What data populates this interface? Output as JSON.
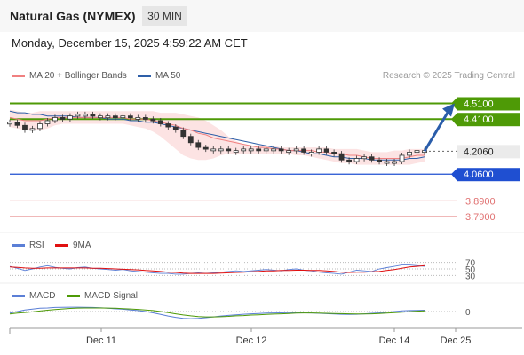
{
  "header": {
    "title": "Natural Gas (NYMEX)",
    "timeframe": "30 MIN"
  },
  "timestamp": "Monday, December 15, 2025 4:59:22 AM CET",
  "credit": "Research © 2025 Trading Central",
  "colors": {
    "ma20": "#f08080",
    "ma50": "#2e5fa8",
    "resistance": "#4e9a06",
    "support": "#1f4fd1",
    "lower": "#e07070",
    "price_tag": "#ebebeb",
    "arrow": "#2a5daa",
    "rsi": "#5b7fd6",
    "rsi_ma": "#e01010",
    "macd": "#5b7fd6",
    "macd_signal": "#4e9a06"
  },
  "chart_data": [
    {
      "type": "line",
      "panel": "price",
      "legend": [
        "MA 20 + Bollinger Bands",
        "MA 50"
      ],
      "ylim": [
        3.7,
        4.62
      ],
      "levels": [
        {
          "value": 4.51,
          "label": "4.5100",
          "kind": "resistance"
        },
        {
          "value": 4.41,
          "label": "4.4100",
          "kind": "resistance"
        },
        {
          "value": 4.206,
          "label": "4.2060",
          "kind": "last"
        },
        {
          "value": 4.06,
          "label": "4.0600",
          "kind": "support"
        },
        {
          "value": 3.89,
          "label": "3.8900",
          "kind": "lower"
        },
        {
          "value": 3.79,
          "label": "3.7900",
          "kind": "lower"
        }
      ],
      "price": [
        4.39,
        4.37,
        4.34,
        4.35,
        4.38,
        4.4,
        4.42,
        4.41,
        4.43,
        4.44,
        4.44,
        4.43,
        4.43,
        4.43,
        4.42,
        4.43,
        4.42,
        4.42,
        4.41,
        4.4,
        4.38,
        4.36,
        4.34,
        4.3,
        4.26,
        4.23,
        4.22,
        4.22,
        4.22,
        4.21,
        4.21,
        4.22,
        4.22,
        4.21,
        4.22,
        4.22,
        4.21,
        4.21,
        4.22,
        4.2,
        4.2,
        4.22,
        4.2,
        4.19,
        4.15,
        4.14,
        4.16,
        4.17,
        4.15,
        4.14,
        4.14,
        4.14,
        4.18,
        4.2,
        4.21,
        4.21
      ],
      "ma20": [
        4.42,
        4.41,
        4.4,
        4.4,
        4.4,
        4.41,
        4.42,
        4.42,
        4.42,
        4.42,
        4.42,
        4.42,
        4.42,
        4.42,
        4.42,
        4.42,
        4.41,
        4.41,
        4.41,
        4.4,
        4.39,
        4.38,
        4.37,
        4.35,
        4.34,
        4.32,
        4.31,
        4.29,
        4.28,
        4.27,
        4.26,
        4.25,
        4.24,
        4.23,
        4.23,
        4.22,
        4.22,
        4.21,
        4.21,
        4.21,
        4.21,
        4.2,
        4.2,
        4.19,
        4.19,
        4.18,
        4.18,
        4.17,
        4.16,
        4.16,
        4.16,
        4.16,
        4.16,
        4.17,
        4.18,
        4.18
      ],
      "ma50": [
        4.46,
        4.45,
        4.45,
        4.44,
        4.44,
        4.43,
        4.43,
        4.43,
        4.43,
        4.42,
        4.42,
        4.42,
        4.42,
        4.41,
        4.41,
        4.41,
        4.4,
        4.4,
        4.39,
        4.39,
        4.38,
        4.37,
        4.36,
        4.35,
        4.34,
        4.33,
        4.32,
        4.31,
        4.3,
        4.29,
        4.28,
        4.27,
        4.26,
        4.25,
        4.24,
        4.23,
        4.22,
        4.21,
        4.21,
        4.2,
        4.19,
        4.19,
        4.18,
        4.17,
        4.17,
        4.16,
        4.16,
        4.16,
        4.15,
        4.15,
        4.15,
        4.15,
        4.15,
        4.16,
        4.16,
        4.17
      ],
      "bb_upper": [
        4.47,
        4.46,
        4.45,
        4.45,
        4.46,
        4.46,
        4.46,
        4.46,
        4.46,
        4.46,
        4.46,
        4.46,
        4.46,
        4.46,
        4.46,
        4.46,
        4.46,
        4.46,
        4.46,
        4.46,
        4.45,
        4.45,
        4.45,
        4.44,
        4.43,
        4.42,
        4.4,
        4.37,
        4.34,
        4.3,
        4.27,
        4.25,
        4.24,
        4.24,
        4.24,
        4.24,
        4.23,
        4.23,
        4.23,
        4.23,
        4.23,
        4.23,
        4.23,
        4.22,
        4.22,
        4.22,
        4.22,
        4.21,
        4.2,
        4.2,
        4.2,
        4.21,
        4.21,
        4.22,
        4.22,
        4.22
      ],
      "bb_lower": [
        4.36,
        4.35,
        4.34,
        4.34,
        4.34,
        4.35,
        4.37,
        4.38,
        4.38,
        4.38,
        4.38,
        4.38,
        4.38,
        4.38,
        4.38,
        4.38,
        4.37,
        4.36,
        4.35,
        4.33,
        4.3,
        4.26,
        4.22,
        4.18,
        4.16,
        4.15,
        4.15,
        4.16,
        4.18,
        4.19,
        4.19,
        4.19,
        4.19,
        4.19,
        4.19,
        4.19,
        4.19,
        4.19,
        4.18,
        4.18,
        4.17,
        4.16,
        4.15,
        4.14,
        4.13,
        4.13,
        4.12,
        4.12,
        4.12,
        4.12,
        4.12,
        4.12,
        4.12,
        4.12,
        4.13,
        4.14
      ],
      "forecast": {
        "from": 4.206,
        "to": 4.51
      }
    },
    {
      "type": "line",
      "panel": "rsi",
      "legend": [
        "RSI",
        "9MA"
      ],
      "ticks": [
        "70",
        "50",
        "30"
      ],
      "ylim": [
        20,
        80
      ],
      "rsi": [
        58,
        52,
        45,
        50,
        56,
        60,
        55,
        52,
        50,
        54,
        56,
        52,
        50,
        48,
        46,
        48,
        44,
        42,
        40,
        38,
        36,
        36,
        34,
        34,
        36,
        38,
        36,
        38,
        40,
        42,
        44,
        42,
        44,
        46,
        48,
        46,
        44,
        48,
        50,
        46,
        44,
        40,
        38,
        36,
        34,
        40,
        46,
        44,
        42,
        50,
        54,
        58,
        62,
        62,
        60,
        58
      ],
      "ma9": [
        56,
        55,
        53,
        52,
        52,
        53,
        53,
        53,
        53,
        53,
        53,
        52,
        52,
        51,
        50,
        49,
        48,
        47,
        45,
        44,
        42,
        40,
        39,
        37,
        36,
        36,
        36,
        36,
        37,
        38,
        39,
        40,
        41,
        42,
        44,
        44,
        45,
        45,
        46,
        46,
        45,
        45,
        44,
        42,
        40,
        39,
        40,
        40,
        41,
        42,
        45,
        48,
        52,
        56,
        58,
        60
      ]
    },
    {
      "type": "line",
      "panel": "macd",
      "legend": [
        "MACD",
        "MACD Signal"
      ],
      "ticks": [
        "0"
      ],
      "ylim": [
        -0.06,
        0.06
      ],
      "macd": [
        -0.01,
        0.0,
        0.01,
        0.015,
        0.02,
        0.022,
        0.025,
        0.026,
        0.027,
        0.027,
        0.026,
        0.025,
        0.023,
        0.02,
        0.017,
        0.014,
        0.01,
        0.006,
        0.0,
        -0.008,
        -0.018,
        -0.028,
        -0.036,
        -0.042,
        -0.044,
        -0.042,
        -0.038,
        -0.033,
        -0.028,
        -0.024,
        -0.02,
        -0.017,
        -0.014,
        -0.012,
        -0.01,
        -0.009,
        -0.008,
        -0.007,
        -0.006,
        -0.008,
        -0.009,
        -0.011,
        -0.013,
        -0.015,
        -0.017,
        -0.018,
        -0.017,
        -0.014,
        -0.011,
        -0.008,
        -0.004,
        0.0,
        0.004,
        0.006,
        0.007,
        0.008
      ],
      "signal": [
        -0.015,
        -0.01,
        -0.006,
        -0.002,
        0.003,
        0.008,
        0.012,
        0.016,
        0.019,
        0.021,
        0.022,
        0.022,
        0.022,
        0.021,
        0.02,
        0.018,
        0.016,
        0.013,
        0.01,
        0.006,
        0.0,
        -0.007,
        -0.014,
        -0.021,
        -0.027,
        -0.031,
        -0.033,
        -0.033,
        -0.032,
        -0.03,
        -0.027,
        -0.025,
        -0.022,
        -0.02,
        -0.018,
        -0.016,
        -0.014,
        -0.012,
        -0.01,
        -0.009,
        -0.009,
        -0.01,
        -0.011,
        -0.012,
        -0.013,
        -0.014,
        -0.015,
        -0.015,
        -0.014,
        -0.012,
        -0.01,
        -0.007,
        -0.004,
        -0.001,
        0.002,
        0.004
      ]
    }
  ],
  "xaxis": {
    "labels": [
      "Dec 11",
      "Dec 12",
      "Dec 14",
      "Dec 25"
    ]
  }
}
